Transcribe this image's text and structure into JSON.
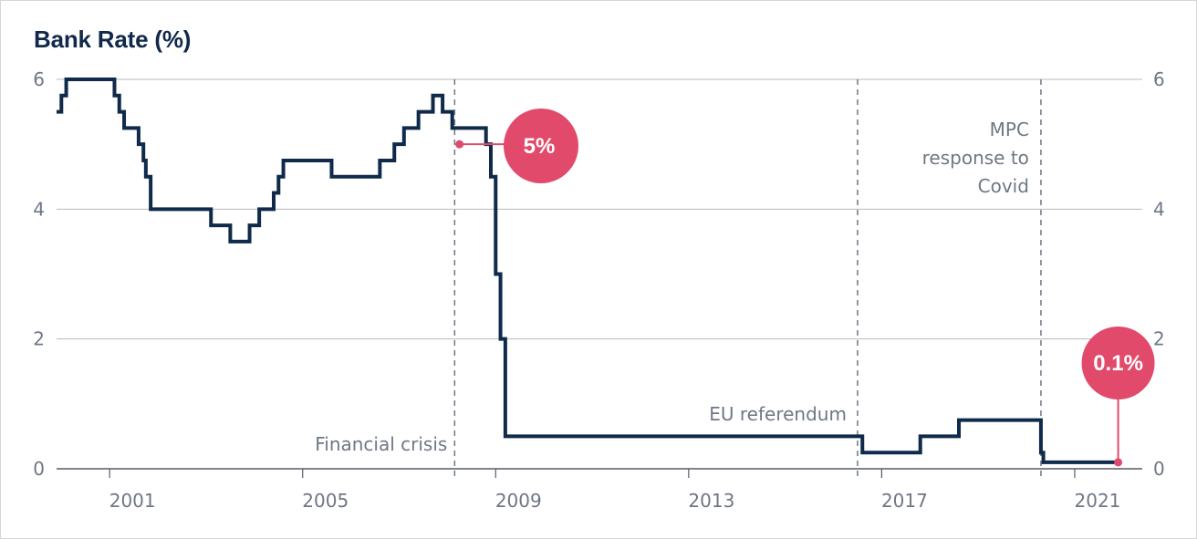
{
  "chart_data": {
    "type": "line",
    "title": "Bank Rate (%)",
    "xlabel": "",
    "ylabel": "",
    "xlim": [
      1999.9,
      2022.4
    ],
    "ylim": [
      0,
      6
    ],
    "y_ticks": [
      0,
      2,
      4,
      6
    ],
    "x_ticks": [
      2001,
      2005,
      2009,
      2013,
      2017,
      2021
    ],
    "x_tick_labels": [
      "2001",
      "2005",
      "2009",
      "2013",
      "2017",
      "2021"
    ],
    "y_tick_labels": [
      "0",
      "2",
      "4",
      "6"
    ],
    "grid": "horizontal",
    "series": [
      {
        "color": "#0f2a4a",
        "step": true,
        "x": [
          1999.9,
          2000.0,
          2000.1,
          2001.1,
          2001.2,
          2001.3,
          2001.6,
          2001.7,
          2001.75,
          2001.85,
          2003.1,
          2003.5,
          2003.9,
          2004.1,
          2004.4,
          2004.5,
          2004.6,
          2005.6,
          2006.6,
          2006.9,
          2007.1,
          2007.4,
          2007.7,
          2007.9,
          2008.1,
          2008.8,
          2008.9,
          2009.0,
          2009.1,
          2009.2,
          2016.6,
          2017.8,
          2018.6,
          2020.3,
          2020.35,
          2021.9
        ],
        "y": [
          5.5,
          5.75,
          6.0,
          5.75,
          5.5,
          5.25,
          5.0,
          4.75,
          4.5,
          4.0,
          3.75,
          3.5,
          3.75,
          4.0,
          4.25,
          4.5,
          4.75,
          4.5,
          4.75,
          5.0,
          5.25,
          5.5,
          5.75,
          5.5,
          5.25,
          5.0,
          4.5,
          3.0,
          2.0,
          0.5,
          0.25,
          0.5,
          0.75,
          0.25,
          0.1,
          0.1
        ]
      }
    ],
    "annotations": [
      {
        "text": "Financial crisis",
        "x": 2008.15
      },
      {
        "text": "EU referendum",
        "x": 2016.5
      },
      {
        "text": "MPC response to Covid",
        "x": 2020.3
      }
    ],
    "callouts": [
      {
        "label": "5%",
        "x": 2008.25,
        "y": 5.0
      },
      {
        "label": "0.1%",
        "x": 2021.9,
        "y": 0.1
      }
    ]
  },
  "colors": {
    "line": "#0f2a4a",
    "accent": "#e24a6b",
    "grid": "#b9b9b9",
    "text": "#6f7785",
    "title": "#12284b"
  }
}
